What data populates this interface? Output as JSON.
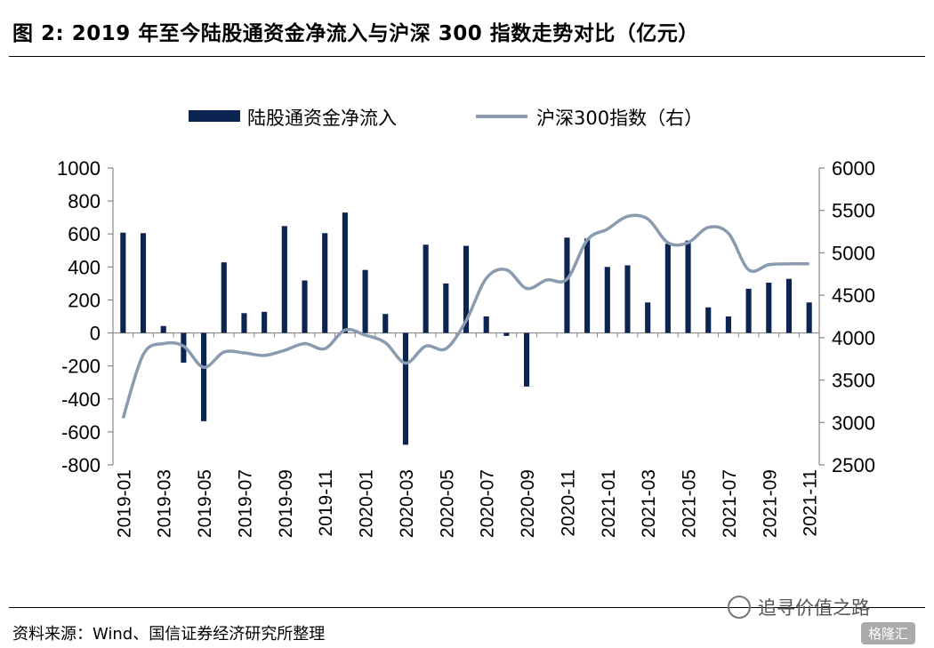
{
  "title": "图 2:  2019 年至今陆股通资金净流入与沪深 300 指数走势对比（亿元）",
  "source": "资料来源：Wind、国信证券经济研究所整理",
  "watermark": "追寻价值之路",
  "badge": "格隆汇",
  "colors": {
    "bars": "#0b2451",
    "line": "#8a9bb0"
  },
  "chart_data": {
    "type": "bar",
    "categories": [
      "2019-01",
      "2019-02",
      "2019-03",
      "2019-04",
      "2019-05",
      "2019-06",
      "2019-07",
      "2019-08",
      "2019-09",
      "2019-10",
      "2019-11",
      "2019-12",
      "2020-01",
      "2020-02",
      "2020-03",
      "2020-04",
      "2020-05",
      "2020-06",
      "2020-07",
      "2020-08",
      "2020-09",
      "2020-10",
      "2020-11",
      "2020-12",
      "2021-01",
      "2021-02",
      "2021-03",
      "2021-04",
      "2021-05",
      "2021-06",
      "2021-07",
      "2021-08",
      "2021-09",
      "2021-10",
      "2021-11"
    ],
    "tick_labels": [
      "2019-01",
      "2019-03",
      "2019-05",
      "2019-07",
      "2019-09",
      "2019-11",
      "2020-01",
      "2020-03",
      "2020-05",
      "2020-07",
      "2020-09",
      "2020-11",
      "2021-01",
      "2021-03",
      "2021-05",
      "2021-07",
      "2021-09",
      "2021-11"
    ],
    "series": [
      {
        "name": "陆股通资金净流入",
        "axis": "left",
        "kind": "bar",
        "values": [
          608,
          605,
          42,
          -180,
          -535,
          428,
          120,
          128,
          648,
          318,
          605,
          730,
          382,
          115,
          -678,
          535,
          300,
          528,
          100,
          -18,
          -325,
          0,
          578,
          572,
          400,
          410,
          185,
          540,
          560,
          155,
          100,
          268,
          305,
          328,
          185
        ]
      },
      {
        "name": "沪深300指数（右）",
        "axis": "right",
        "kind": "line",
        "values": [
          3050,
          3800,
          3930,
          3900,
          3650,
          3830,
          3820,
          3790,
          3850,
          3930,
          3870,
          4090,
          4030,
          3940,
          3700,
          3900,
          3870,
          4200,
          4700,
          4800,
          4580,
          4680,
          4690,
          5150,
          5280,
          5430,
          5400,
          5120,
          5120,
          5300,
          5230,
          4800,
          4860,
          4870,
          4870
        ]
      }
    ],
    "yleft": {
      "min": -800,
      "max": 1000,
      "ticks": [
        1000,
        800,
        600,
        400,
        200,
        0,
        -200,
        -400,
        -600,
        -800
      ]
    },
    "yright": {
      "min": 2500,
      "max": 6000,
      "ticks": [
        6000,
        5500,
        5000,
        4500,
        4000,
        3500,
        3000,
        2500
      ]
    },
    "legend_placement": "top-center",
    "grid": false
  }
}
